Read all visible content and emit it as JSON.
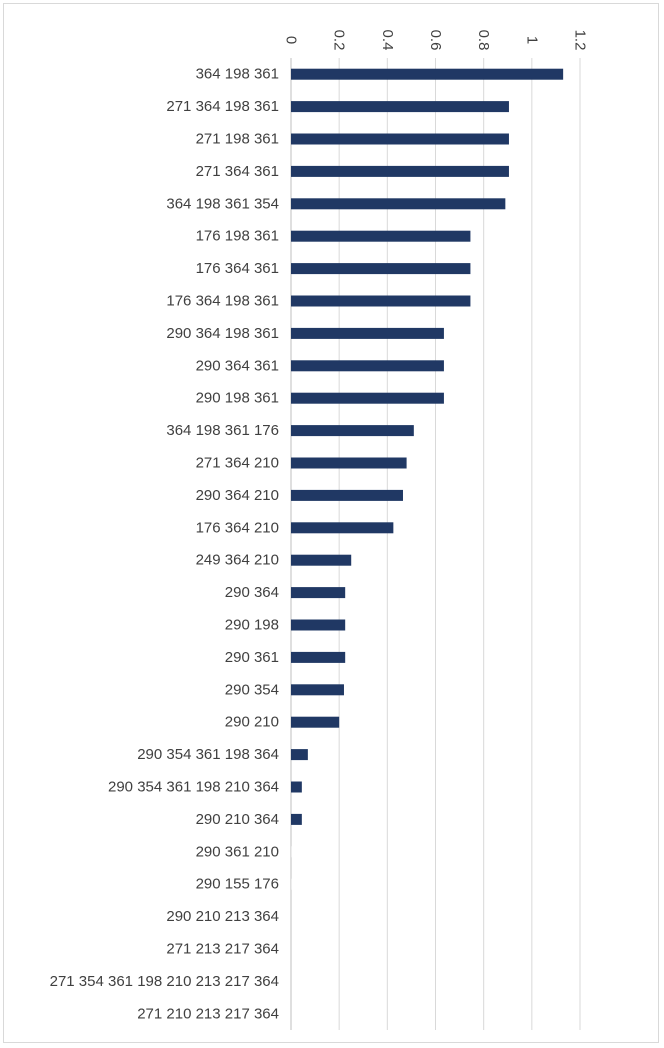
{
  "chart_data": {
    "type": "bar",
    "orientation": "horizontal",
    "value_axis_position": "top",
    "grid": true,
    "legend": "none",
    "xlim": [
      0,
      1.2
    ],
    "ticks": [
      "0",
      "0.2",
      "0.4",
      "0.6",
      "0.8",
      "1",
      "1.2"
    ],
    "tick_values": [
      0,
      0.2,
      0.4,
      0.6,
      0.8,
      1,
      1.2
    ],
    "bar_color": "#203864",
    "grid_color": "#d9d9d9",
    "text_color": "#404040",
    "categories": [
      "364 198 361",
      "271 364 198 361",
      "271 198 361",
      "271 364 361",
      "364 198 361 354",
      "176 198 361",
      "176 364 361",
      "176 364 198 361",
      "290 364 198 361",
      "290 364 361",
      "290 198 361",
      "364 198 361 176",
      "271 364 210",
      "290 364 210",
      "176 364 210",
      "249 364 210",
      "290 364",
      "290 198",
      "290 361",
      "290 354",
      "290 210",
      "290 354 361 198 364",
      "290 354 361 198 210 364",
      "290 210 364",
      "290 361 210",
      "290 155 176",
      "290 210 213 364",
      "271 213 217 364",
      "271 354 361 198 210 213 217 364",
      "271 210 213 217 364"
    ],
    "values": [
      1.13,
      0.905,
      0.905,
      0.905,
      0.89,
      0.745,
      0.745,
      0.745,
      0.635,
      0.635,
      0.635,
      0.51,
      0.48,
      0.465,
      0.425,
      0.25,
      0.225,
      0.225,
      0.225,
      0.22,
      0.2,
      0.07,
      0.045,
      0.045,
      0.003,
      0.003,
      0,
      0,
      0,
      0
    ]
  }
}
